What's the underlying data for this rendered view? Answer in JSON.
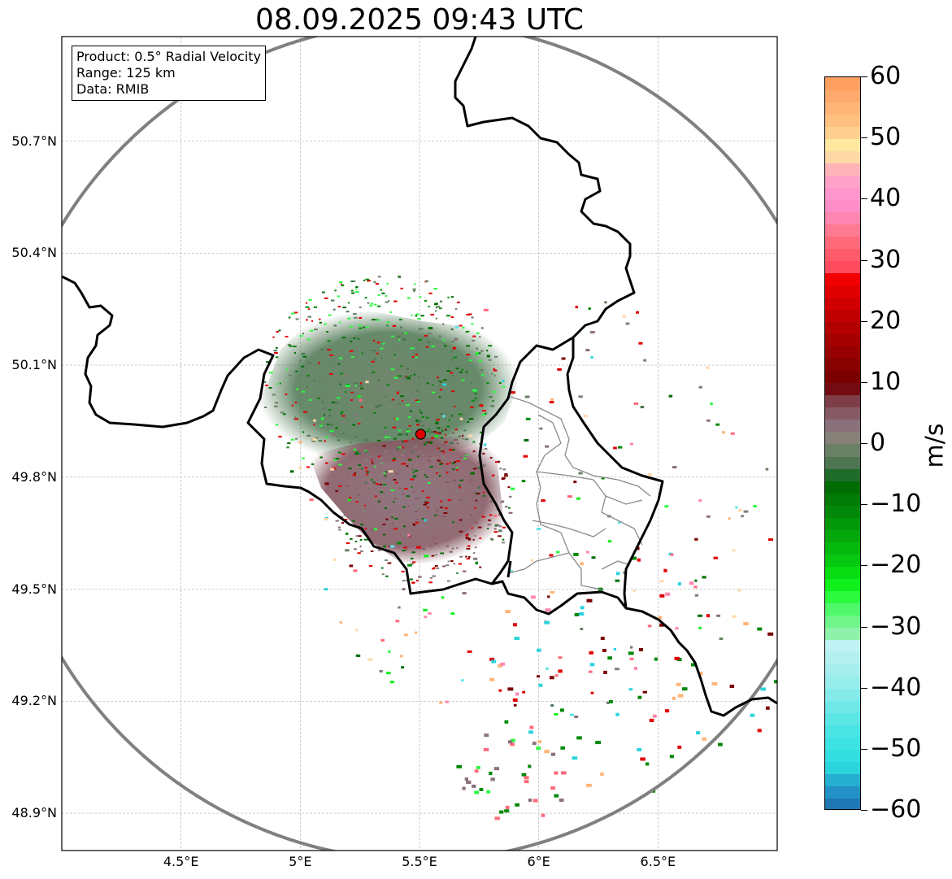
{
  "map": {
    "title": "08.09.2025 09:43 UTC",
    "info": [
      "Product: 0.5° Radial Velocity",
      "Range: 125 km",
      "Data: RMIB"
    ],
    "extent": {
      "lon_min": 4.0,
      "lon_max": 7.0,
      "lat_min": 48.8,
      "lat_max": 50.98
    },
    "radar_site": {
      "lon": 5.505,
      "lat": 49.915
    },
    "lon_ticks": [
      {
        "value": 4.5,
        "label": "4.5°E"
      },
      {
        "value": 5.0,
        "label": "5°E"
      },
      {
        "value": 5.5,
        "label": "5.5°E"
      },
      {
        "value": 6.0,
        "label": "6°E"
      },
      {
        "value": 6.5,
        "label": "6.5°E"
      }
    ],
    "lat_ticks": [
      {
        "value": 50.7,
        "label": "50.7°N"
      },
      {
        "value": 50.4,
        "label": "50.4°N"
      },
      {
        "value": 50.1,
        "label": "50.1°N"
      },
      {
        "value": 49.8,
        "label": "49.8°N"
      },
      {
        "value": 49.5,
        "label": "49.5°N"
      },
      {
        "value": 49.2,
        "label": "49.2°N"
      },
      {
        "value": 48.9,
        "label": "48.9°N"
      }
    ],
    "colors": {
      "range_ring": "#808080",
      "border": "#000000",
      "admin_border": "#8a8a8a",
      "grid": "#b4b4b4",
      "site_marker": "#e00000"
    }
  },
  "colorbar": {
    "unit": "m/s",
    "min": -60,
    "max": 60,
    "ticks": [
      {
        "value": 60,
        "label": "60"
      },
      {
        "value": 50,
        "label": "50"
      },
      {
        "value": 40,
        "label": "40"
      },
      {
        "value": 30,
        "label": "30"
      },
      {
        "value": 20,
        "label": "20"
      },
      {
        "value": 10,
        "label": "10"
      },
      {
        "value": 0,
        "label": "0"
      },
      {
        "value": -10,
        "label": "−10"
      },
      {
        "value": -20,
        "label": "−20"
      },
      {
        "value": -30,
        "label": "−30"
      },
      {
        "value": -40,
        "label": "−40"
      },
      {
        "value": -50,
        "label": "−50"
      },
      {
        "value": -60,
        "label": "−60"
      }
    ],
    "stops": [
      {
        "from": -60,
        "to": -58,
        "color": "#1f77b4"
      },
      {
        "from": -58,
        "to": -56,
        "color": "#2391c5"
      },
      {
        "from": -56,
        "to": -54,
        "color": "#26afd0"
      },
      {
        "from": -54,
        "to": -52,
        "color": "#2cd4dc"
      },
      {
        "from": -52,
        "to": -50,
        "color": "#33dfe0"
      },
      {
        "from": -50,
        "to": -48,
        "color": "#3de2e2"
      },
      {
        "from": -48,
        "to": -46,
        "color": "#4ae4e4"
      },
      {
        "from": -46,
        "to": -44,
        "color": "#5ce6e6"
      },
      {
        "from": -44,
        "to": -42,
        "color": "#70e8e8"
      },
      {
        "from": -42,
        "to": -40,
        "color": "#84eaea"
      },
      {
        "from": -40,
        "to": -38,
        "color": "#97ecec"
      },
      {
        "from": -38,
        "to": -36,
        "color": "#a6eeee"
      },
      {
        "from": -36,
        "to": -34,
        "color": "#b4f0f0"
      },
      {
        "from": -34,
        "to": -32,
        "color": "#bff2f2"
      },
      {
        "from": -32,
        "to": -30,
        "color": "#8ef2aa"
      },
      {
        "from": -30,
        "to": -28,
        "color": "#6ff58a"
      },
      {
        "from": -28,
        "to": -26,
        "color": "#4ef86a"
      },
      {
        "from": -26,
        "to": -24,
        "color": "#2bfa3e"
      },
      {
        "from": -24,
        "to": -22,
        "color": "#10f01c"
      },
      {
        "from": -22,
        "to": -20,
        "color": "#08dc12"
      },
      {
        "from": -20,
        "to": -18,
        "color": "#06c810"
      },
      {
        "from": -18,
        "to": -16,
        "color": "#05b80e"
      },
      {
        "from": -16,
        "to": -14,
        "color": "#04a80c"
      },
      {
        "from": -14,
        "to": -12,
        "color": "#03980a"
      },
      {
        "from": -12,
        "to": -10,
        "color": "#028808"
      },
      {
        "from": -10,
        "to": -8,
        "color": "#017a06"
      },
      {
        "from": -8,
        "to": -6,
        "color": "#006c04"
      },
      {
        "from": -6,
        "to": -4,
        "color": "#1f6b2a"
      },
      {
        "from": -4,
        "to": -2,
        "color": "#4c7550"
      },
      {
        "from": -2,
        "to": 0,
        "color": "#6a8066"
      },
      {
        "from": 0,
        "to": 2,
        "color": "#858078"
      },
      {
        "from": 2,
        "to": 4,
        "color": "#8a707a"
      },
      {
        "from": 4,
        "to": 6,
        "color": "#865a64"
      },
      {
        "from": 6,
        "to": 8,
        "color": "#7e3e48"
      },
      {
        "from": 8,
        "to": 10,
        "color": "#730c12"
      },
      {
        "from": 10,
        "to": 12,
        "color": "#7a0000"
      },
      {
        "from": 12,
        "to": 14,
        "color": "#880000"
      },
      {
        "from": 14,
        "to": 16,
        "color": "#960000"
      },
      {
        "from": 16,
        "to": 18,
        "color": "#a40000"
      },
      {
        "from": 18,
        "to": 20,
        "color": "#b20000"
      },
      {
        "from": 20,
        "to": 22,
        "color": "#c00000"
      },
      {
        "from": 22,
        "to": 24,
        "color": "#d00000"
      },
      {
        "from": 24,
        "to": 26,
        "color": "#e00000"
      },
      {
        "from": 26,
        "to": 28,
        "color": "#f00000"
      },
      {
        "from": 28,
        "to": 30,
        "color": "#ff4b5c"
      },
      {
        "from": 30,
        "to": 32,
        "color": "#ff5a6a"
      },
      {
        "from": 32,
        "to": 34,
        "color": "#ff6a7a"
      },
      {
        "from": 34,
        "to": 36,
        "color": "#ff7a90"
      },
      {
        "from": 36,
        "to": 38,
        "color": "#ff86b0"
      },
      {
        "from": 38,
        "to": 40,
        "color": "#ff8ec8"
      },
      {
        "from": 40,
        "to": 42,
        "color": "#ff96cc"
      },
      {
        "from": 42,
        "to": 44,
        "color": "#ffa2c8"
      },
      {
        "from": 44,
        "to": 46,
        "color": "#ffb4b8"
      },
      {
        "from": 46,
        "to": 48,
        "color": "#ffd8a8"
      },
      {
        "from": 48,
        "to": 50,
        "color": "#ffe8a0"
      },
      {
        "from": 50,
        "to": 52,
        "color": "#ffd090"
      },
      {
        "from": 52,
        "to": 54,
        "color": "#ffc080"
      },
      {
        "from": 54,
        "to": 56,
        "color": "#ffb478"
      },
      {
        "from": 56,
        "to": 58,
        "color": "#ffaa6c"
      },
      {
        "from": 58,
        "to": 60,
        "color": "#ffa060"
      }
    ]
  }
}
